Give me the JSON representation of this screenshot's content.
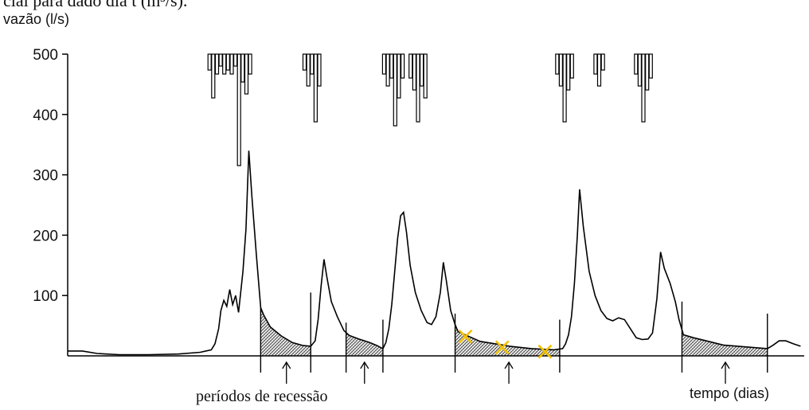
{
  "page": {
    "top_text": "cial para dado dia t (m³/s)."
  },
  "chart_data": {
    "type": "line",
    "title": "",
    "ylabel": "vazão (l/s)",
    "xlabel": "tempo (dias)",
    "ylim": [
      0,
      500
    ],
    "xlim": [
      0,
      1000
    ],
    "y_ticks": [
      {
        "value": 500,
        "label": "500"
      },
      {
        "value": 400,
        "label": "400"
      },
      {
        "value": 300,
        "label": "300"
      },
      {
        "value": 200,
        "label": "200"
      },
      {
        "value": 100,
        "label": "100"
      }
    ],
    "grid": false,
    "hydrograph": [
      [
        0,
        8
      ],
      [
        20,
        8
      ],
      [
        40,
        4
      ],
      [
        70,
        2
      ],
      [
        110,
        2
      ],
      [
        150,
        3
      ],
      [
        180,
        6
      ],
      [
        195,
        10
      ],
      [
        200,
        20
      ],
      [
        205,
        45
      ],
      [
        208,
        75
      ],
      [
        212,
        92
      ],
      [
        216,
        82
      ],
      [
        220,
        110
      ],
      [
        224,
        85
      ],
      [
        228,
        100
      ],
      [
        232,
        72
      ],
      [
        238,
        140
      ],
      [
        242,
        210
      ],
      [
        246,
        340
      ],
      [
        250,
        265
      ],
      [
        256,
        170
      ],
      [
        262,
        80
      ],
      [
        266,
        68
      ],
      [
        275,
        48
      ],
      [
        290,
        33
      ],
      [
        305,
        22
      ],
      [
        320,
        17
      ],
      [
        330,
        16
      ],
      [
        336,
        25
      ],
      [
        340,
        60
      ],
      [
        344,
        115
      ],
      [
        348,
        160
      ],
      [
        352,
        130
      ],
      [
        358,
        90
      ],
      [
        366,
        65
      ],
      [
        375,
        42
      ],
      [
        382,
        34
      ],
      [
        395,
        28
      ],
      [
        410,
        22
      ],
      [
        420,
        17
      ],
      [
        428,
        12
      ],
      [
        432,
        22
      ],
      [
        436,
        45
      ],
      [
        440,
        85
      ],
      [
        444,
        140
      ],
      [
        448,
        195
      ],
      [
        452,
        232
      ],
      [
        456,
        238
      ],
      [
        460,
        205
      ],
      [
        465,
        150
      ],
      [
        472,
        105
      ],
      [
        480,
        75
      ],
      [
        488,
        55
      ],
      [
        494,
        52
      ],
      [
        500,
        65
      ],
      [
        506,
        105
      ],
      [
        510,
        155
      ],
      [
        514,
        125
      ],
      [
        520,
        75
      ],
      [
        526,
        52
      ],
      [
        530,
        40
      ],
      [
        545,
        32
      ],
      [
        560,
        24
      ],
      [
        580,
        20
      ],
      [
        600,
        16
      ],
      [
        630,
        12
      ],
      [
        660,
        10
      ],
      [
        672,
        12
      ],
      [
        676,
        20
      ],
      [
        680,
        35
      ],
      [
        684,
        65
      ],
      [
        688,
        120
      ],
      [
        692,
        200
      ],
      [
        695,
        276
      ],
      [
        700,
        215
      ],
      [
        708,
        140
      ],
      [
        716,
        100
      ],
      [
        724,
        75
      ],
      [
        732,
        62
      ],
      [
        740,
        58
      ],
      [
        748,
        63
      ],
      [
        756,
        60
      ],
      [
        764,
        45
      ],
      [
        772,
        30
      ],
      [
        780,
        27
      ],
      [
        788,
        28
      ],
      [
        794,
        38
      ],
      [
        800,
        95
      ],
      [
        805,
        172
      ],
      [
        810,
        145
      ],
      [
        818,
        120
      ],
      [
        825,
        90
      ],
      [
        830,
        60
      ],
      [
        836,
        35
      ],
      [
        850,
        30
      ],
      [
        870,
        24
      ],
      [
        890,
        18
      ],
      [
        910,
        16
      ],
      [
        930,
        14
      ],
      [
        950,
        12
      ],
      [
        958,
        18
      ],
      [
        966,
        25
      ],
      [
        975,
        25
      ],
      [
        985,
        20
      ],
      [
        995,
        16
      ]
    ],
    "rainfall_bars": [
      {
        "x": 193,
        "depth": 20
      },
      {
        "x": 198,
        "depth": 55
      },
      {
        "x": 203,
        "depth": 25
      },
      {
        "x": 208,
        "depth": 15
      },
      {
        "x": 213,
        "depth": 25
      },
      {
        "x": 218,
        "depth": 20
      },
      {
        "x": 223,
        "depth": 25
      },
      {
        "x": 228,
        "depth": 15
      },
      {
        "x": 233,
        "depth": 140
      },
      {
        "x": 238,
        "depth": 35
      },
      {
        "x": 243,
        "depth": 50
      },
      {
        "x": 248,
        "depth": 25
      },
      {
        "x": 322,
        "depth": 20
      },
      {
        "x": 327,
        "depth": 40
      },
      {
        "x": 332,
        "depth": 25
      },
      {
        "x": 337,
        "depth": 85
      },
      {
        "x": 342,
        "depth": 40
      },
      {
        "x": 430,
        "depth": 25
      },
      {
        "x": 435,
        "depth": 40
      },
      {
        "x": 440,
        "depth": 30
      },
      {
        "x": 445,
        "depth": 90
      },
      {
        "x": 450,
        "depth": 55
      },
      {
        "x": 455,
        "depth": 30
      },
      {
        "x": 466,
        "depth": 30
      },
      {
        "x": 471,
        "depth": 45
      },
      {
        "x": 476,
        "depth": 85
      },
      {
        "x": 481,
        "depth": 40
      },
      {
        "x": 486,
        "depth": 55
      },
      {
        "x": 665,
        "depth": 25
      },
      {
        "x": 670,
        "depth": 40
      },
      {
        "x": 675,
        "depth": 85
      },
      {
        "x": 680,
        "depth": 45
      },
      {
        "x": 685,
        "depth": 30
      },
      {
        "x": 717,
        "depth": 25
      },
      {
        "x": 722,
        "depth": 40
      },
      {
        "x": 727,
        "depth": 20
      },
      {
        "x": 772,
        "depth": 25
      },
      {
        "x": 777,
        "depth": 40
      },
      {
        "x": 782,
        "depth": 85
      },
      {
        "x": 787,
        "depth": 45
      },
      {
        "x": 792,
        "depth": 30
      }
    ],
    "recession_periods": [
      {
        "start": 262,
        "end": 330
      },
      {
        "start": 378,
        "end": 428
      },
      {
        "start": 526,
        "end": 668
      },
      {
        "start": 834,
        "end": 950
      }
    ],
    "separator_lines": [
      {
        "x": 262,
        "y_top": 80
      },
      {
        "x": 330,
        "y_top": 105
      },
      {
        "x": 378,
        "y_top": 55
      },
      {
        "x": 428,
        "y_top": 60
      },
      {
        "x": 526,
        "y_top": 70
      },
      {
        "x": 668,
        "y_top": 60
      },
      {
        "x": 834,
        "y_top": 90
      },
      {
        "x": 950,
        "y_top": 70
      }
    ],
    "recession_arrows": [
      297,
      403,
      599,
      893
    ],
    "x_markers": [
      {
        "x": 540,
        "y": 32,
        "color": "#f2c200"
      },
      {
        "x": 590,
        "y": 14,
        "color": "#f2c200"
      },
      {
        "x": 648,
        "y": 7,
        "color": "#f2c200"
      }
    ],
    "annotation": "períodos de recessão",
    "colors": {
      "line": "#000000",
      "hatch": "#555555",
      "marker": "#f2c200"
    }
  }
}
